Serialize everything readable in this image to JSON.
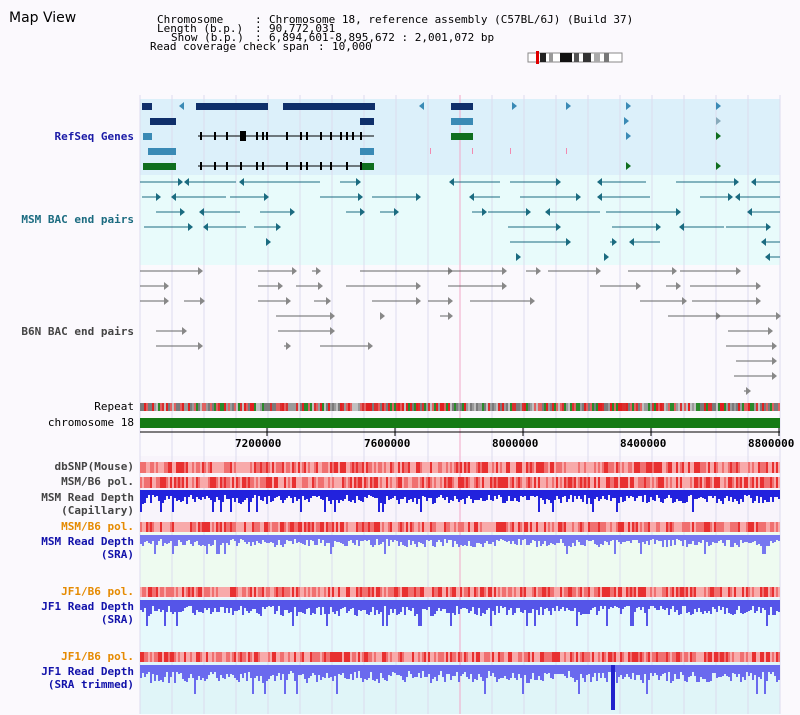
{
  "header": {
    "title": "Map View",
    "chromosome_label": "Chromosome",
    "chromosome_value": "Chromosome 18, reference assembly (C57BL/6J) (Build 37)",
    "length_label": "Length (b.p.)",
    "length_value": "90,772,031",
    "show_label": "Show (b.p.)",
    "show_value": "6,894,601-8,895,672 : 2,001,072 bp",
    "coverage_label": "Read coverage check span",
    "coverage_value": "10,000"
  },
  "tracks": {
    "refseq": "RefSeq Genes",
    "msm_bac": "MSM BAC end pairs",
    "b6n_bac": "B6N BAC end pairs",
    "repeat": "Repeat",
    "chromosome": "chromosome 18",
    "dbsnp": "dbSNP(Mouse)",
    "msm_b6_pol_1": "MSM/B6 pol.",
    "msm_depth_cap_1": "MSM Read Depth",
    "msm_depth_cap_2": "(Capillary)",
    "msm_b6_pol_2": "MSM/B6 pol.",
    "msm_depth_sra_1": "MSM Read Depth",
    "msm_depth_sra_2": "(SRA)",
    "jf1_b6_pol_1": "JF1/B6 pol.",
    "jf1_depth_sra_1": "JF1 Read Depth",
    "jf1_depth_sra_2": "(SRA)",
    "jf1_b6_pol_2": "JF1/B6 pol.",
    "jf1_depth_trim_1": "JF1 Read Depth",
    "jf1_depth_trim_2": "(SRA trimmed)"
  },
  "ruler": {
    "ticks": [
      "7200000",
      "7600000",
      "8000000",
      "8400000",
      "8800000"
    ]
  },
  "colors": {
    "refseq_bg": "#dcf0fa",
    "bac_bg": "#e8fbfb",
    "gene_dark": "#0f2f6a",
    "gene_mid": "#3a8ab5",
    "gene_green": "#0f6e1e",
    "chromosome_bar": "#157a15",
    "msm_depth": "#2222dd",
    "sra_depth": "#7777f0",
    "pol_red": "#ee4444"
  }
}
